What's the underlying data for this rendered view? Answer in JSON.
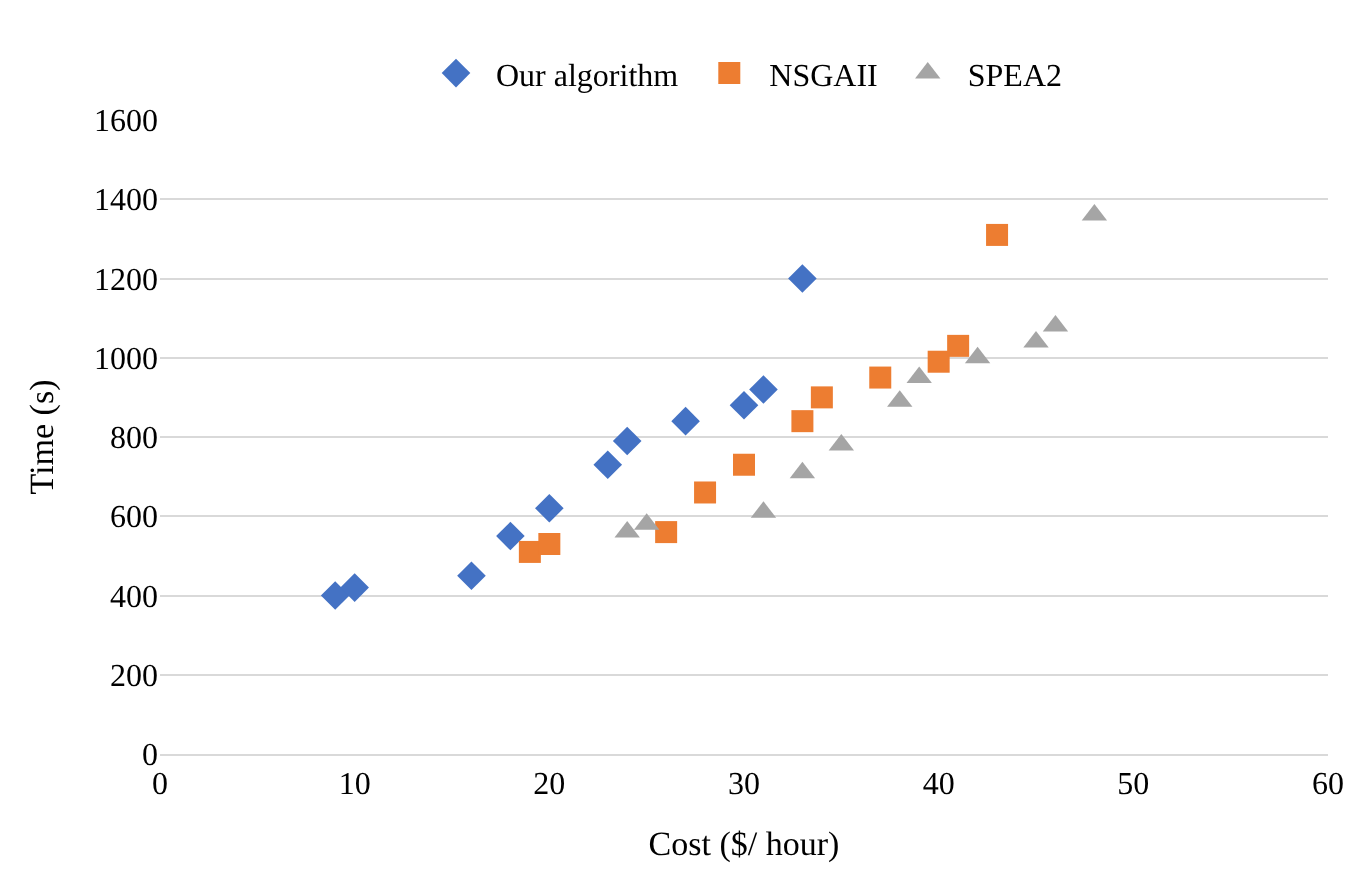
{
  "chart_data": {
    "type": "scatter",
    "xlabel": "Cost ($/ hour)",
    "ylabel": "Time (s)",
    "xlim": [
      0,
      60
    ],
    "xticks": [
      0,
      10,
      20,
      30,
      40,
      50,
      60
    ],
    "ylim": [
      0,
      1600
    ],
    "yticks": [
      0,
      200,
      400,
      600,
      800,
      1000,
      1200,
      1400,
      1600
    ],
    "grid": "y",
    "legend": "top",
    "series": [
      {
        "name": "Our algorithm",
        "color": "#4472c4",
        "marker": "diamond",
        "x": [
          9,
          10,
          16,
          18,
          20,
          23,
          24,
          27,
          30,
          31,
          33
        ],
        "values": [
          400,
          420,
          450,
          550,
          620,
          730,
          790,
          840,
          880,
          920,
          1200
        ]
      },
      {
        "name": "NSGAII",
        "color": "#ed7d31",
        "marker": "square",
        "x": [
          19,
          20,
          26,
          28,
          30,
          33,
          34,
          37,
          40,
          41,
          43
        ],
        "values": [
          510,
          530,
          560,
          660,
          730,
          840,
          900,
          950,
          990,
          1030,
          1310
        ]
      },
      {
        "name": "SPEA2",
        "color": "#a5a5a5",
        "marker": "triangle",
        "x": [
          24,
          25,
          31,
          33,
          35,
          38,
          39,
          42,
          45,
          46,
          48
        ],
        "values": [
          560,
          580,
          610,
          710,
          780,
          890,
          950,
          1000,
          1040,
          1080,
          1360
        ]
      }
    ]
  }
}
